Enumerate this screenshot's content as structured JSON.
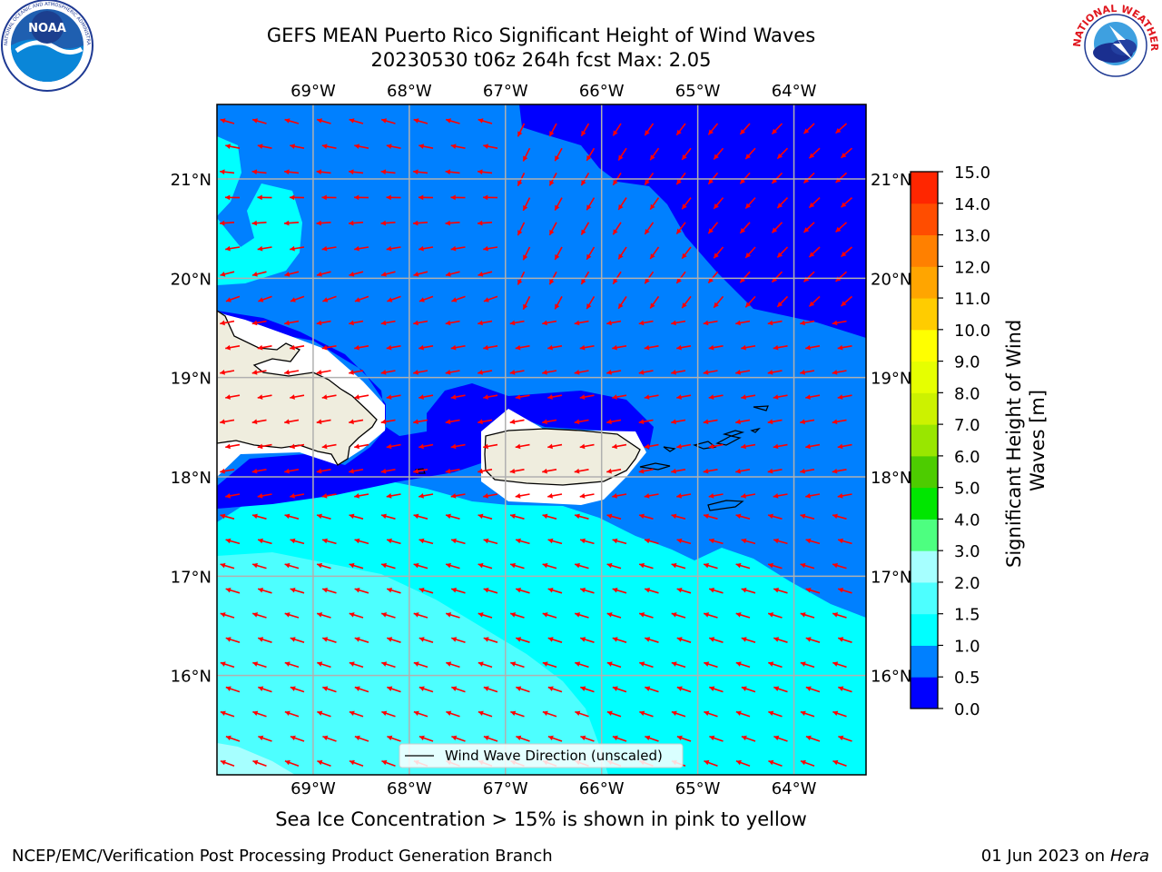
{
  "title_line1": "GEFS MEAN Puerto Rico Significant Height of Wind Waves",
  "title_line2": "20230530 t06z 264h fcst   Max: 2.05",
  "caption": "Sea Ice Concentration > 15% is shown in pink to yellow",
  "footer_left": "NCEP/EMC/Verification Post Processing Product Generation Branch",
  "footer_date": "01 Jun 2023 on",
  "footer_host": "Hera",
  "legend_label": "Wind Wave Direction (unscaled)",
  "colorbar_label_line1": "Significant Height of Wind",
  "colorbar_label_line2": "Waves [m]",
  "logos": {
    "left": "noaa-logo",
    "right": "national-weather-service-logo"
  },
  "logo_text": {
    "noaa": "NOAA",
    "noaa_ring": "NATIONAL OCEANIC AND ATMOSPHERIC ADMINISTRATION · U.S. DEPARTMENT OF COMMERCE",
    "nws_ring": "NATIONAL WEATHER SERVICE"
  },
  "map": {
    "lon_labels": [
      "69°W",
      "68°W",
      "67°W",
      "66°W",
      "65°W",
      "64°W"
    ],
    "lat_labels": [
      "21°N",
      "20°N",
      "19°N",
      "18°N",
      "17°N",
      "16°N"
    ],
    "lon_values": [
      -69,
      -68,
      -67,
      -66,
      -65,
      -64
    ],
    "lat_values": [
      21,
      20,
      19,
      18,
      17,
      16
    ],
    "lon_range": [
      -70.0,
      -63.25
    ],
    "lat_range": [
      15.0,
      21.75
    ],
    "grid": true,
    "land_color": "#efedde",
    "coast_color": "#000000",
    "arrow_color": "#ff0000",
    "arrow_direction": "toward west-southwest",
    "regions": [
      {
        "level": "0.0-0.5",
        "color": "#0000ff",
        "area": "northeast open ocean and Mona Passage"
      },
      {
        "level": "0.5-1.0",
        "color": "#0080ff",
        "area": "central basin around Puerto Rico"
      },
      {
        "level": "1.0-1.5",
        "color": "#00ffff",
        "area": "south of 17.5°N"
      },
      {
        "level": "1.5-2.0",
        "color": "#4dffff",
        "area": "southwest Caribbean"
      },
      {
        "level": "2.0-2.5",
        "color": "#a6ffff",
        "area": "far southwest corner"
      }
    ]
  },
  "colorbar": {
    "ticks": [
      "0.0",
      "0.5",
      "1.0",
      "1.5",
      "2.0",
      "3.0",
      "4.0",
      "5.0",
      "6.0",
      "7.0",
      "8.0",
      "9.0",
      "10.0",
      "11.0",
      "12.0",
      "13.0",
      "14.0",
      "15.0"
    ],
    "colors": [
      "#0000ff",
      "#0080ff",
      "#00ffff",
      "#4dffff",
      "#a6ffff",
      "#4dff80",
      "#00e600",
      "#4dcc00",
      "#99e600",
      "#ccf200",
      "#e6ff00",
      "#ffff00",
      "#ffcc00",
      "#ffa500",
      "#ff8000",
      "#ff4d00",
      "#ff2600"
    ]
  }
}
